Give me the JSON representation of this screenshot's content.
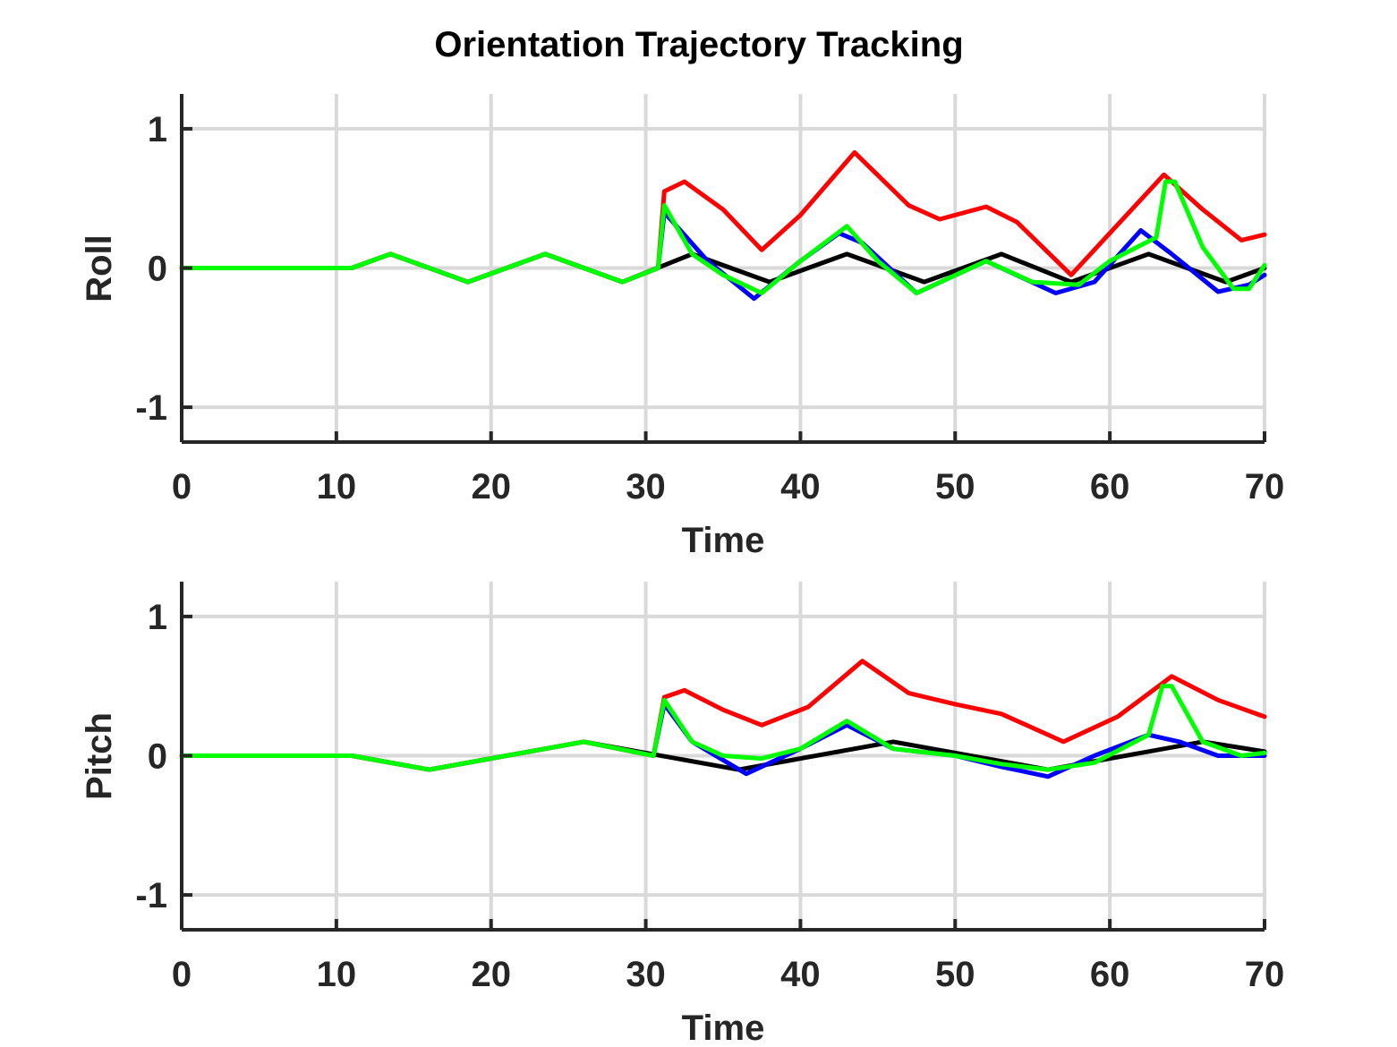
{
  "figure_title": "Orientation Trajectory Tracking",
  "colors": {
    "axis": "#262626",
    "grid": "#d9d9d9",
    "series": [
      "#000000",
      "#0000ff",
      "#ff0000",
      "#00ff00"
    ]
  },
  "chart_data": [
    {
      "type": "line",
      "title": "Orientation Trajectory Tracking",
      "xlabel": "Time",
      "ylabel": "Roll",
      "xlim": [
        0,
        70
      ],
      "ylim": [
        -1.25,
        1.25
      ],
      "xticks": [
        0,
        10,
        20,
        30,
        40,
        50,
        60,
        70
      ],
      "yticks": [
        -1,
        0,
        1
      ],
      "grid": true,
      "series": [
        {
          "color": "#000000",
          "x": [
            0,
            11,
            13.5,
            18.5,
            23.5,
            28.5,
            33,
            38,
            43,
            48,
            53,
            57.5,
            62.5,
            67.5,
            70
          ],
          "y": [
            0,
            0,
            0.1,
            -0.1,
            0.1,
            -0.1,
            0.1,
            -0.1,
            0.1,
            -0.1,
            0.1,
            -0.1,
            0.1,
            -0.1,
            0
          ]
        },
        {
          "color": "#0000ff",
          "x": [
            0,
            11,
            13.5,
            18.5,
            23.5,
            28.5,
            30.8,
            31.2,
            34,
            37,
            40,
            42.5,
            44,
            47.5,
            52,
            56.5,
            59,
            62,
            64,
            67,
            69,
            70
          ],
          "y": [
            0,
            0,
            0.1,
            -0.1,
            0.1,
            -0.1,
            0,
            0.4,
            0.05,
            -0.22,
            0.05,
            0.25,
            0.18,
            -0.18,
            0.05,
            -0.18,
            -0.1,
            0.27,
            0.1,
            -0.17,
            -0.12,
            -0.05
          ]
        },
        {
          "color": "#ff0000",
          "x": [
            0,
            11,
            13.5,
            18.5,
            23.5,
            28.5,
            30.8,
            31.2,
            32.5,
            35,
            37.5,
            40,
            43.5,
            47,
            49,
            52,
            54,
            57.5,
            60,
            63.5,
            66,
            68.5,
            70
          ],
          "y": [
            0,
            0,
            0.1,
            -0.1,
            0.1,
            -0.1,
            0,
            0.55,
            0.62,
            0.42,
            0.13,
            0.38,
            0.83,
            0.45,
            0.35,
            0.44,
            0.33,
            -0.05,
            0.25,
            0.67,
            0.42,
            0.2,
            0.24
          ]
        },
        {
          "color": "#00ff00",
          "x": [
            0,
            11,
            13.5,
            18.5,
            23.5,
            28.5,
            30.8,
            31.2,
            33,
            35,
            37.5,
            40,
            43,
            45,
            47.5,
            52,
            55,
            58,
            60,
            63,
            63.6,
            64.2,
            66,
            68,
            69,
            70
          ],
          "y": [
            0,
            0,
            0.1,
            -0.1,
            0.1,
            -0.1,
            0,
            0.45,
            0.1,
            -0.05,
            -0.18,
            0.05,
            0.3,
            0.05,
            -0.18,
            0.05,
            -0.1,
            -0.12,
            0.05,
            0.22,
            0.62,
            0.62,
            0.15,
            -0.15,
            -0.15,
            0.02
          ]
        }
      ]
    },
    {
      "type": "line",
      "xlabel": "Time",
      "ylabel": "Pitch",
      "xlim": [
        0,
        70
      ],
      "ylim": [
        -1.25,
        1.25
      ],
      "xticks": [
        0,
        10,
        20,
        30,
        40,
        50,
        60,
        70
      ],
      "yticks": [
        -1,
        0,
        1
      ],
      "grid": true,
      "series": [
        {
          "color": "#000000",
          "x": [
            0,
            11,
            16,
            26,
            36,
            46,
            56,
            66,
            70
          ],
          "y": [
            0,
            0,
            -0.1,
            0.1,
            -0.1,
            0.1,
            -0.1,
            0.1,
            0.03
          ]
        },
        {
          "color": "#0000ff",
          "x": [
            0,
            11,
            16,
            26,
            30.5,
            31.2,
            33,
            36.5,
            40,
            43,
            46,
            50,
            53,
            56,
            59,
            62.5,
            64.5,
            67,
            70
          ],
          "y": [
            0,
            0,
            -0.1,
            0.1,
            0,
            0.37,
            0.1,
            -0.13,
            0.05,
            0.22,
            0.05,
            0,
            -0.08,
            -0.15,
            0,
            0.15,
            0.1,
            0,
            0
          ]
        },
        {
          "color": "#ff0000",
          "x": [
            0,
            11,
            16,
            26,
            30.5,
            31.2,
            32.5,
            35,
            37.5,
            40.5,
            44,
            47,
            50,
            53,
            57,
            60.5,
            64,
            67,
            70
          ],
          "y": [
            0,
            0,
            -0.1,
            0.1,
            0,
            0.42,
            0.47,
            0.33,
            0.22,
            0.35,
            0.68,
            0.45,
            0.37,
            0.3,
            0.1,
            0.28,
            0.57,
            0.4,
            0.28
          ]
        },
        {
          "color": "#00ff00",
          "x": [
            0,
            11,
            16,
            26,
            30.5,
            31.2,
            33,
            35,
            37.5,
            40,
            43,
            46,
            50,
            53,
            56,
            59,
            62.5,
            63.4,
            64,
            66,
            68.5,
            70
          ],
          "y": [
            0,
            0,
            -0.1,
            0.1,
            0,
            0.4,
            0.1,
            0,
            -0.02,
            0.05,
            0.25,
            0.05,
            0,
            -0.06,
            -0.1,
            -0.05,
            0.15,
            0.5,
            0.5,
            0.1,
            0,
            0.02
          ]
        }
      ]
    }
  ]
}
